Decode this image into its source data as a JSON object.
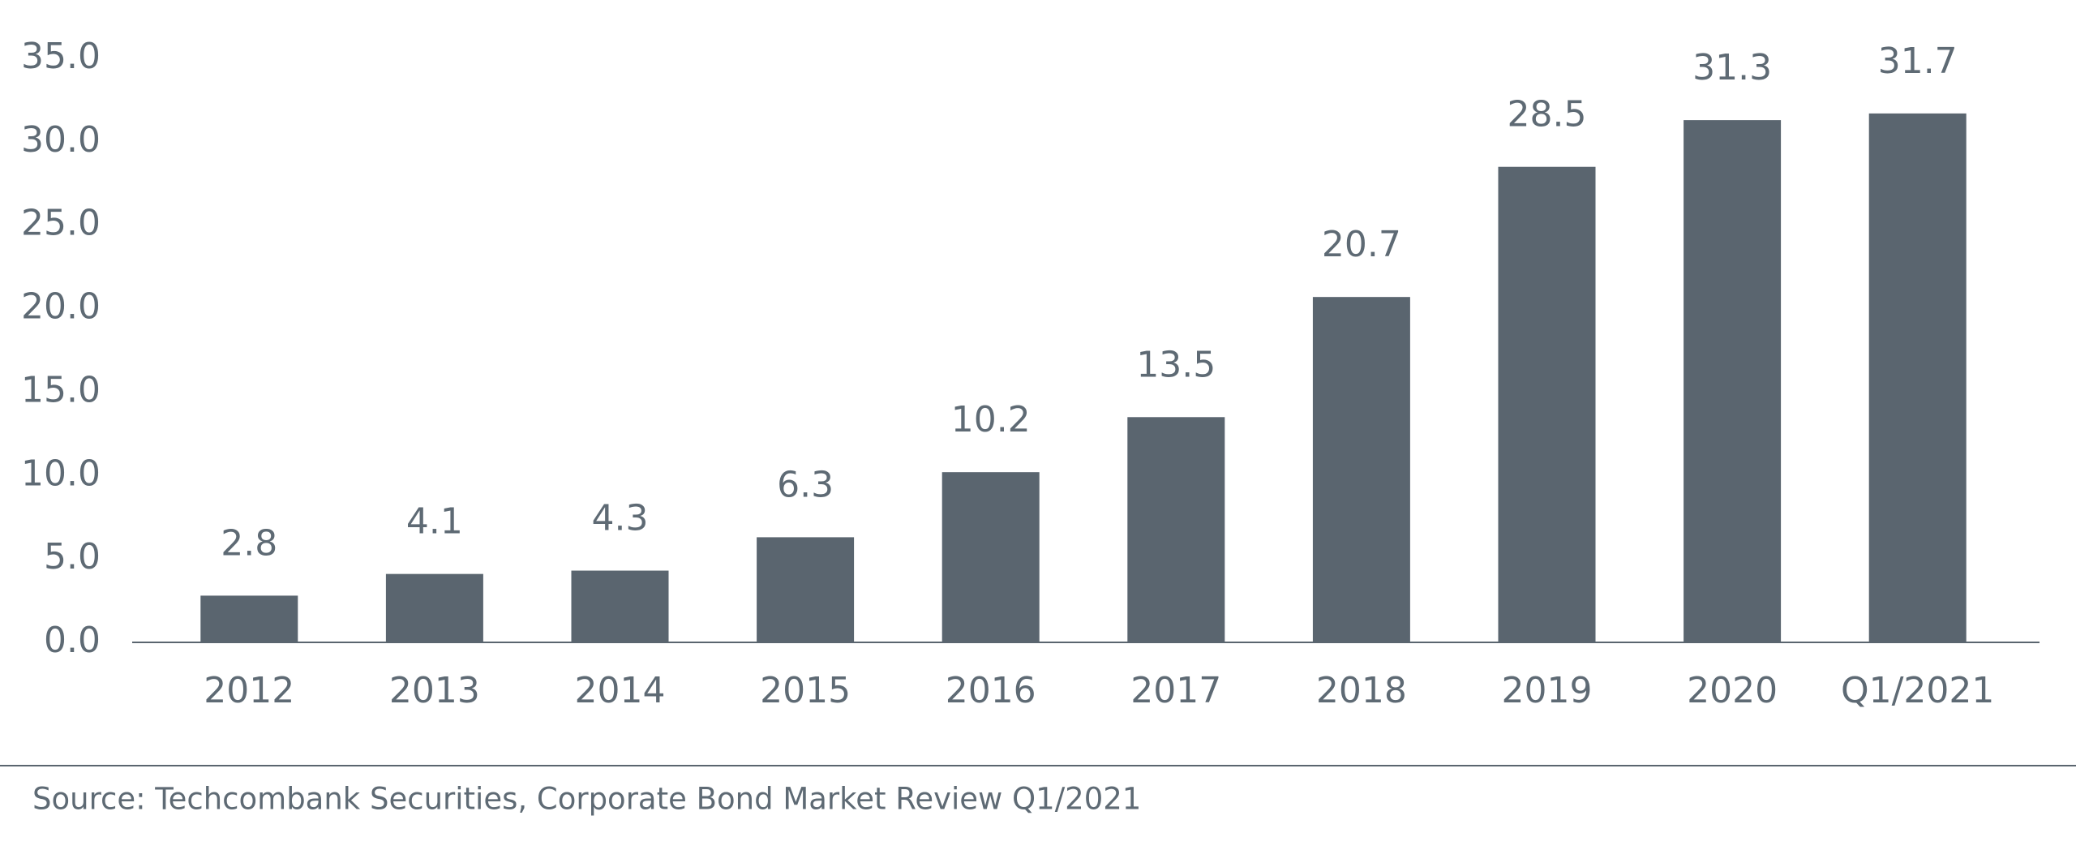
{
  "chart_data": {
    "type": "bar",
    "categories": [
      "2012",
      "2013",
      "2014",
      "2015",
      "2016",
      "2017",
      "2018",
      "2019",
      "2020",
      "Q1/2021"
    ],
    "values": [
      2.8,
      4.1,
      4.3,
      6.3,
      10.2,
      13.5,
      20.7,
      28.5,
      31.3,
      31.7
    ],
    "color": "#5a656f",
    "ylim": [
      0,
      35
    ],
    "yticks": [
      {
        "value": 0,
        "label": "0.0"
      },
      {
        "value": 5,
        "label": "5.0"
      },
      {
        "value": 10,
        "label": "10.0"
      },
      {
        "value": 15,
        "label": "15.0"
      },
      {
        "value": 20,
        "label": "20.0"
      },
      {
        "value": 25,
        "label": "25.0"
      },
      {
        "value": 30,
        "label": "30.0"
      },
      {
        "value": 35,
        "label": "35.0"
      }
    ],
    "grid": false,
    "source": "Source: Techcombank Securities, Corporate Bond Market Review Q1/2021"
  }
}
